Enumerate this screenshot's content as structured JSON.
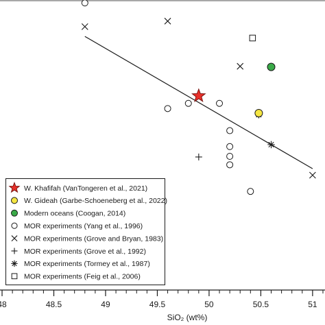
{
  "chart_data": {
    "type": "scatter",
    "title": "",
    "xlabel": "SiO₂ (wt%)",
    "ylabel": "",
    "xlim": [
      47.98,
      51.12
    ],
    "ylim": [
      0,
      1
    ],
    "x_ticks": [
      "48",
      "48.5",
      "49",
      "49.5",
      "50",
      "50.5",
      "51"
    ],
    "grid": false,
    "legend_position": "bottom-left",
    "trend_line": {
      "x": [
        48.8,
        51.0
      ],
      "y": [
        0.888,
        0.481
      ]
    },
    "series": [
      {
        "name": "W. Khafifah (VanTongeren et al., 2021)",
        "marker": "star",
        "color": "#e8302a",
        "points": [
          {
            "x": 49.9,
            "y": 0.705
          }
        ]
      },
      {
        "name": "W. Gideah (Garbe-Schoeneberg et al., 2022)",
        "marker": "circle",
        "color": "#f5e642",
        "points": [
          {
            "x": 50.48,
            "y": 0.652
          }
        ]
      },
      {
        "name": "Modern oceans (Coogan, 2014)",
        "marker": "circle",
        "color": "#3aaa48",
        "points": [
          {
            "x": 50.6,
            "y": 0.794
          }
        ]
      },
      {
        "name": "MOR experiments (Yang et al., 1996)",
        "marker": "open-circle",
        "color": "#1a1a1a",
        "points": [
          {
            "x": 48.8,
            "y": 0.991
          },
          {
            "x": 49.6,
            "y": 0.666
          },
          {
            "x": 49.8,
            "y": 0.682
          },
          {
            "x": 50.1,
            "y": 0.682
          },
          {
            "x": 50.2,
            "y": 0.598
          },
          {
            "x": 50.2,
            "y": 0.549
          },
          {
            "x": 50.2,
            "y": 0.519
          },
          {
            "x": 50.2,
            "y": 0.493
          },
          {
            "x": 50.4,
            "y": 0.411
          }
        ]
      },
      {
        "name": "MOR experiments (Grove and Bryan, 1983)",
        "marker": "x",
        "color": "#1a1a1a",
        "points": [
          {
            "x": 48.8,
            "y": 0.918
          },
          {
            "x": 49.6,
            "y": 0.935
          },
          {
            "x": 50.3,
            "y": 0.796
          },
          {
            "x": 51.0,
            "y": 0.461
          }
        ]
      },
      {
        "name": "MOR experiments (Grove et al., 1992)",
        "marker": "plus",
        "color": "#1a1a1a",
        "points": [
          {
            "x": 49.9,
            "y": 0.517
          }
        ]
      },
      {
        "name": "MOR experiments (Tormey et al., 1987)",
        "marker": "asterisk",
        "color": "#1a1a1a",
        "points": [
          {
            "x": 50.48,
            "y": 0.647
          },
          {
            "x": 50.6,
            "y": 0.555
          }
        ]
      },
      {
        "name": "MOR experiments (Feig et al., 2006)",
        "marker": "open-square",
        "color": "#1a1a1a",
        "points": [
          {
            "x": 50.42,
            "y": 0.883
          }
        ]
      }
    ]
  }
}
